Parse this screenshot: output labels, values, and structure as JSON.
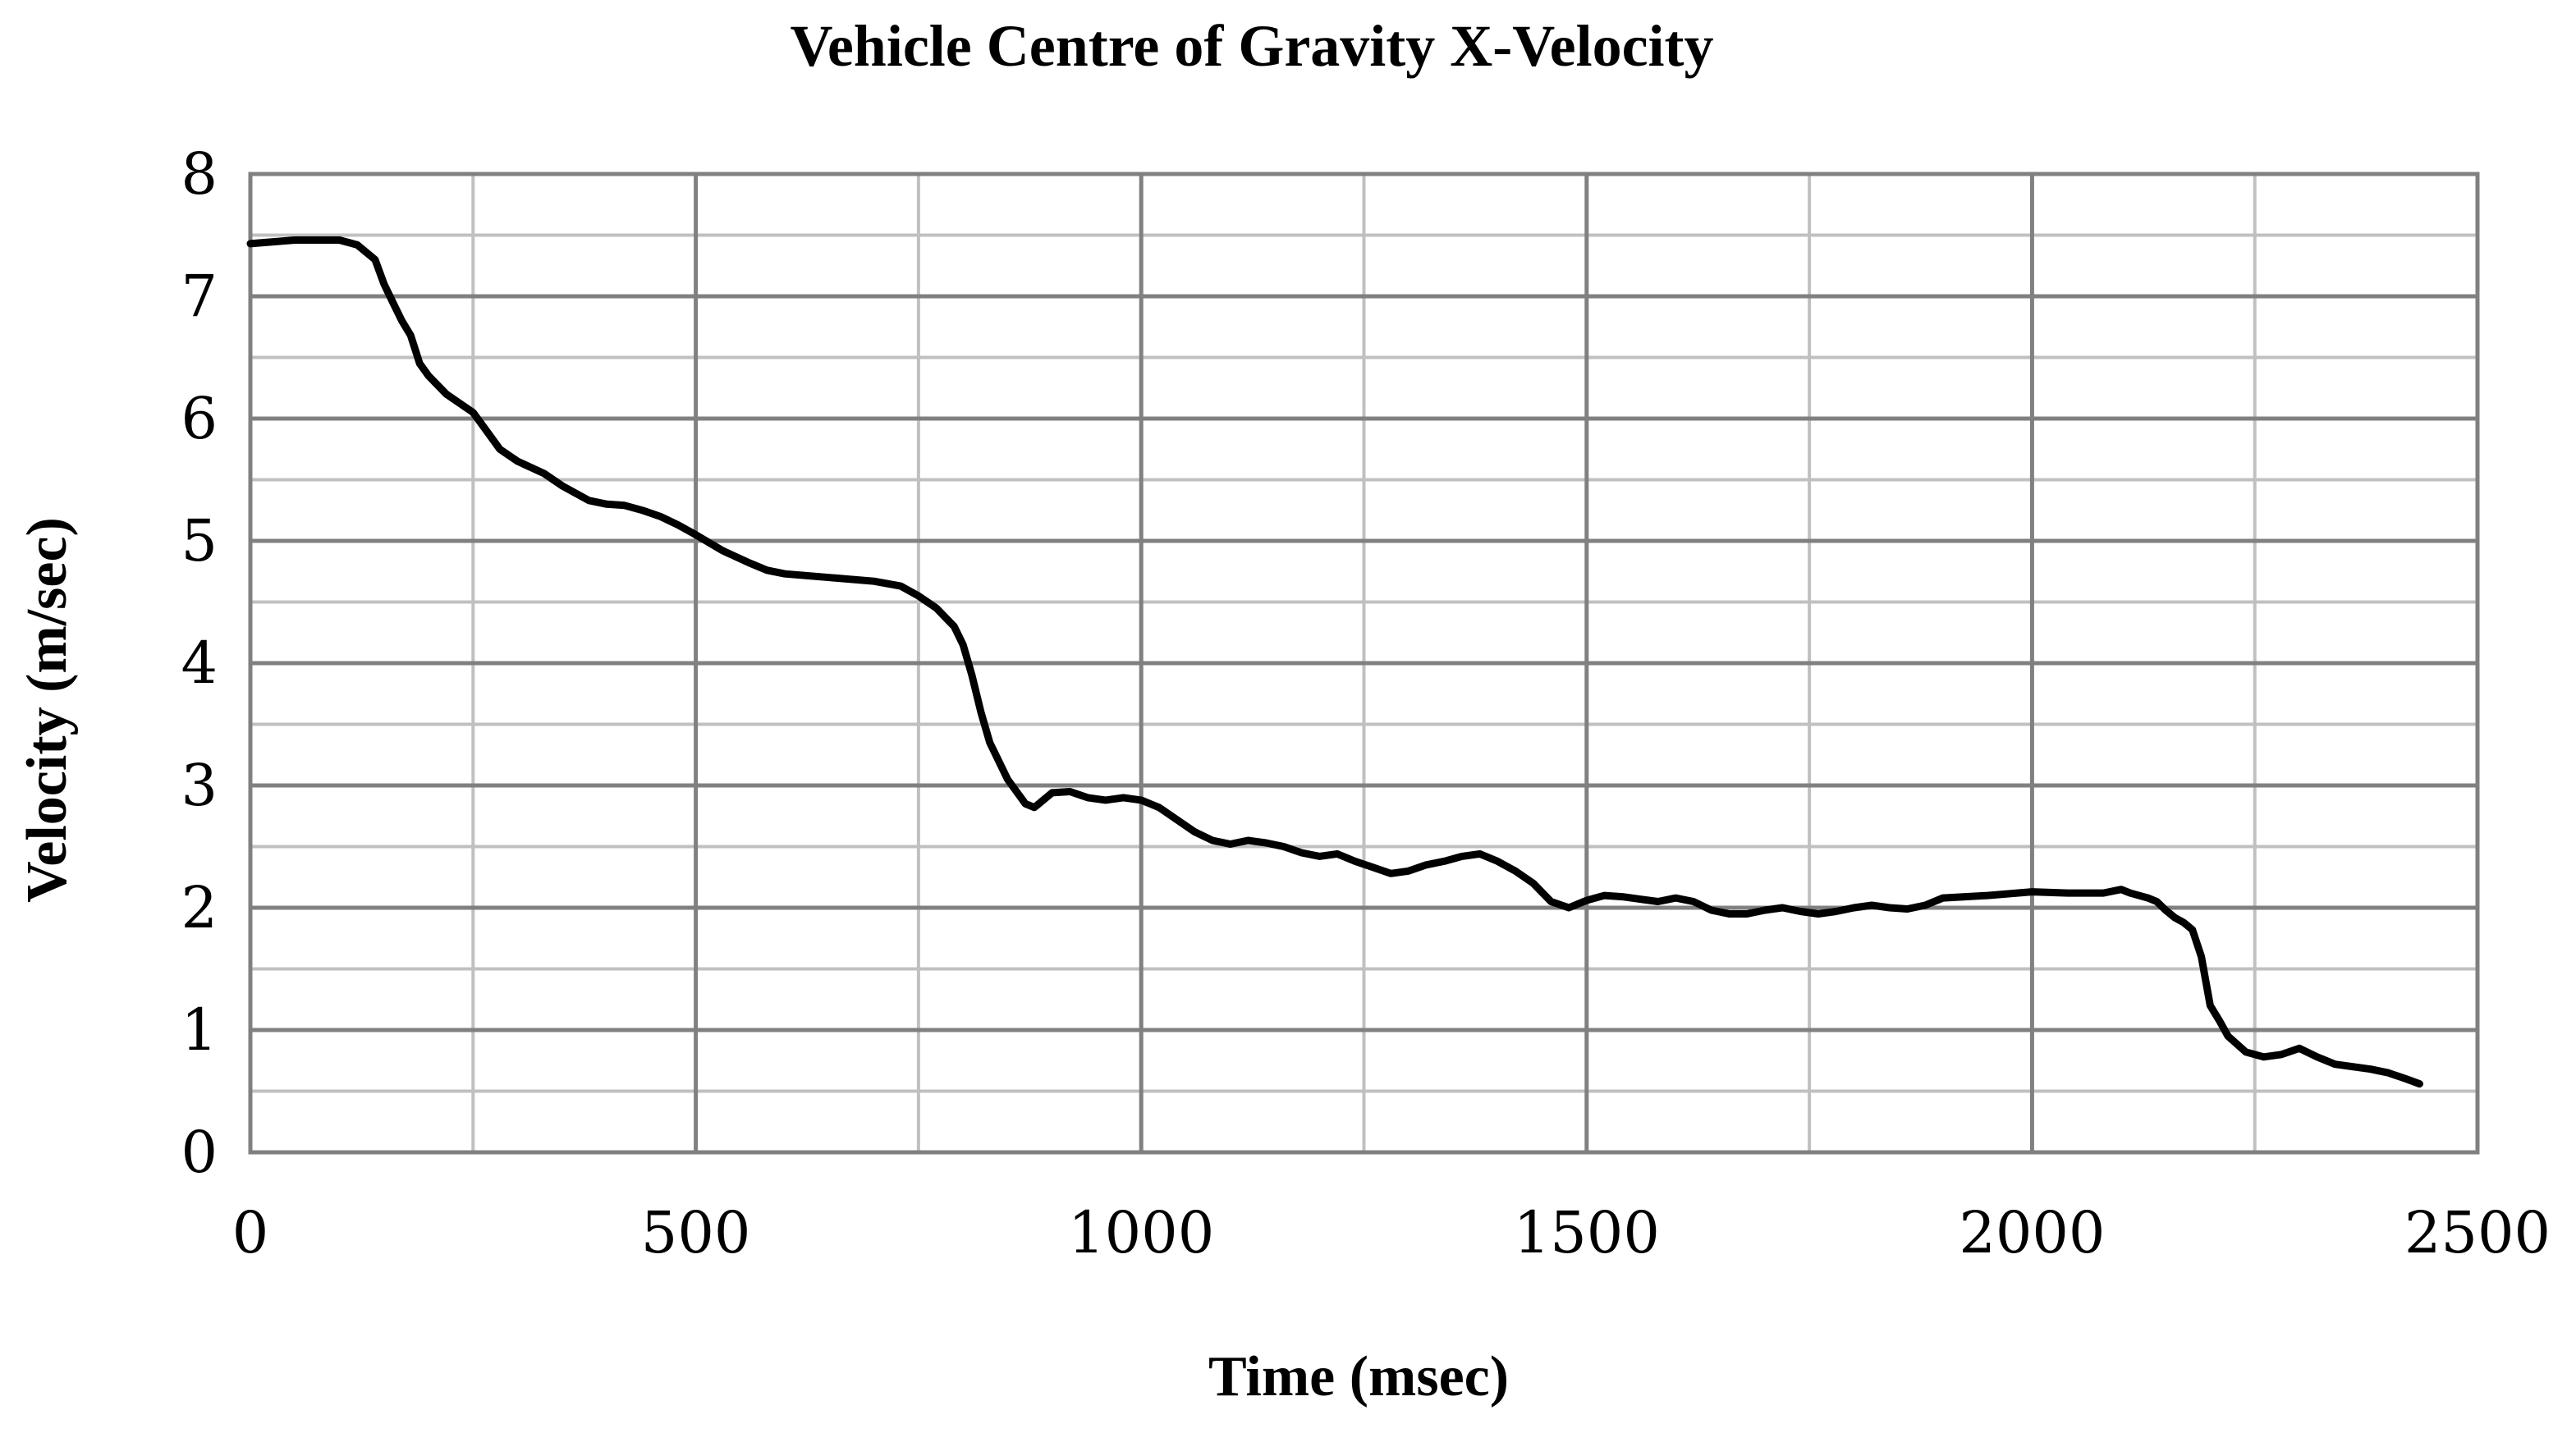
{
  "chart_data": {
    "type": "line",
    "title": "Vehicle Centre of Gravity X-Velocity",
    "xlabel": "Time (msec)",
    "ylabel": "Velocity (m/sec)",
    "xlim": [
      0,
      2500
    ],
    "ylim": [
      0,
      8
    ],
    "xticks": [
      0,
      500,
      1000,
      1500,
      2000,
      2500
    ],
    "yticks": [
      0,
      1,
      2,
      3,
      4,
      5,
      6,
      7,
      8
    ],
    "x_tick_labels": [
      "0",
      "500",
      "1000",
      "1500",
      "2000",
      "2500"
    ],
    "y_tick_labels": [
      "0",
      "1",
      "2",
      "3",
      "4",
      "5",
      "6",
      "7",
      "8"
    ],
    "x_minor_step": 250,
    "y_minor_step": 0.5,
    "grid": true,
    "colors": {
      "line": "#000000",
      "major_grid": "#808080",
      "minor_grid": "#c0c0c0",
      "frame": "#808080"
    },
    "series": [
      {
        "x": [
          0,
          50,
          100,
          120,
          140,
          150,
          160,
          170,
          180,
          190,
          200,
          220,
          250,
          260,
          280,
          300,
          330,
          350,
          380,
          400,
          420,
          440,
          460,
          480,
          500,
          530,
          560,
          580,
          600,
          650,
          700,
          730,
          750,
          770,
          790,
          800,
          810,
          820,
          830,
          840,
          850,
          860,
          870,
          880,
          890,
          900,
          920,
          940,
          960,
          980,
          1000,
          1020,
          1040,
          1060,
          1080,
          1100,
          1120,
          1140,
          1160,
          1180,
          1200,
          1220,
          1240,
          1260,
          1280,
          1300,
          1320,
          1340,
          1360,
          1380,
          1400,
          1420,
          1440,
          1460,
          1480,
          1500,
          1520,
          1540,
          1560,
          1580,
          1600,
          1620,
          1640,
          1660,
          1680,
          1700,
          1720,
          1740,
          1760,
          1780,
          1800,
          1820,
          1840,
          1860,
          1880,
          1900,
          1950,
          2000,
          2040,
          2080,
          2100,
          2110,
          2120,
          2130,
          2140,
          2150,
          2160,
          2170,
          2180,
          2190,
          2200,
          2210,
          2220,
          2240,
          2260,
          2280,
          2300,
          2320,
          2340,
          2360,
          2380,
          2400,
          2420,
          2435
        ],
        "y": [
          7.43,
          7.46,
          7.46,
          7.42,
          7.3,
          7.1,
          6.95,
          6.8,
          6.68,
          6.45,
          6.35,
          6.2,
          6.05,
          5.95,
          5.75,
          5.65,
          5.55,
          5.45,
          5.33,
          5.3,
          5.29,
          5.25,
          5.2,
          5.13,
          5.05,
          4.92,
          4.82,
          4.76,
          4.73,
          4.7,
          4.67,
          4.63,
          4.55,
          4.45,
          4.3,
          4.15,
          3.9,
          3.6,
          3.35,
          3.2,
          3.05,
          2.95,
          2.85,
          2.82,
          2.88,
          2.94,
          2.95,
          2.9,
          2.88,
          2.9,
          2.88,
          2.82,
          2.72,
          2.62,
          2.55,
          2.52,
          2.55,
          2.53,
          2.5,
          2.45,
          2.42,
          2.44,
          2.38,
          2.33,
          2.28,
          2.3,
          2.35,
          2.38,
          2.42,
          2.44,
          2.38,
          2.3,
          2.2,
          2.05,
          2.0,
          2.06,
          2.1,
          2.09,
          2.07,
          2.05,
          2.08,
          2.05,
          1.98,
          1.95,
          1.95,
          1.98,
          2.0,
          1.97,
          1.95,
          1.97,
          2.0,
          2.02,
          2.0,
          1.99,
          2.02,
          2.08,
          2.1,
          2.13,
          2.12,
          2.12,
          2.15,
          2.12,
          2.1,
          2.08,
          2.05,
          1.98,
          1.92,
          1.88,
          1.82,
          1.6,
          1.2,
          1.08,
          0.95,
          0.82,
          0.78,
          0.8,
          0.85,
          0.78,
          0.72,
          0.7,
          0.68,
          0.65,
          0.6,
          0.56
        ]
      }
    ]
  }
}
